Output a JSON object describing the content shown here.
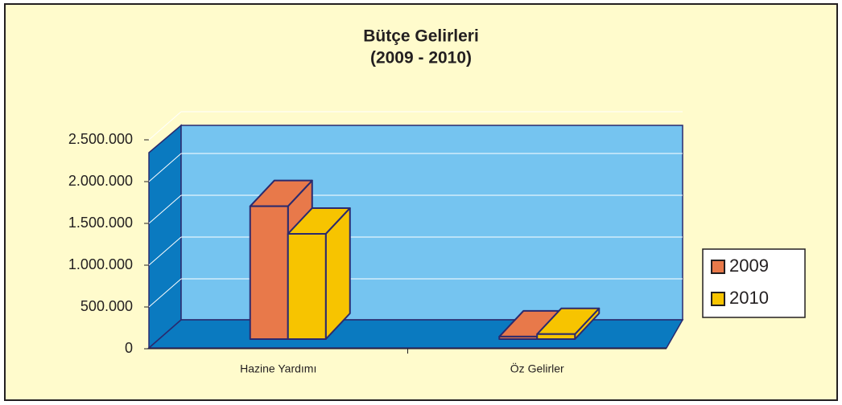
{
  "chart_data": {
    "type": "bar3d",
    "title": "Bütçe Gelirleri",
    "subtitle": "(2009 - 2010)",
    "categories": [
      "Hazine Yardımı",
      "Öz Gelirler"
    ],
    "series": [
      {
        "name": "2009",
        "color": "#e8794a",
        "values": [
          1590000,
          30000
        ]
      },
      {
        "name": "2010",
        "color": "#f7c400",
        "values": [
          1260000,
          60000
        ]
      }
    ],
    "ylim": [
      0,
      2500000
    ],
    "yticks": [
      0,
      {
        "value": 500000,
        "label": "500.000"
      },
      {
        "value": 1000000,
        "label": "1.000.000"
      },
      {
        "value": 1500000,
        "label": "1.500.000"
      },
      {
        "value": 2000000,
        "label": "2.000.000"
      },
      {
        "value": 2500000,
        "label": "2.500.000"
      }
    ],
    "grid": true,
    "legend": "right"
  }
}
